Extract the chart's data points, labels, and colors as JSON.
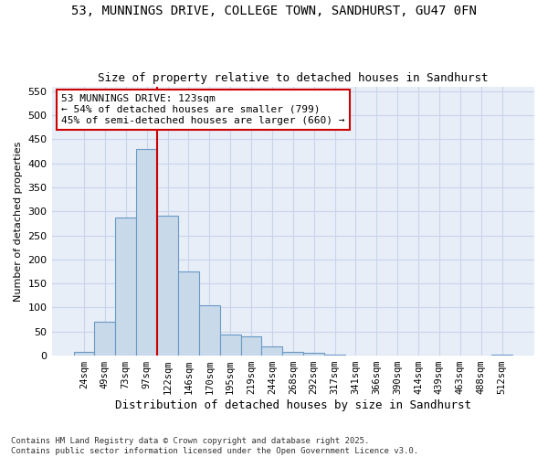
{
  "title1": "53, MUNNINGS DRIVE, COLLEGE TOWN, SANDHURST, GU47 0FN",
  "title2": "Size of property relative to detached houses in Sandhurst",
  "xlabel": "Distribution of detached houses by size in Sandhurst",
  "ylabel": "Number of detached properties",
  "bin_labels": [
    "24sqm",
    "49sqm",
    "73sqm",
    "97sqm",
    "122sqm",
    "146sqm",
    "170sqm",
    "195sqm",
    "219sqm",
    "244sqm",
    "268sqm",
    "292sqm",
    "317sqm",
    "341sqm",
    "366sqm",
    "390sqm",
    "414sqm",
    "439sqm",
    "463sqm",
    "488sqm",
    "512sqm"
  ],
  "bar_values": [
    8,
    70,
    288,
    430,
    292,
    175,
    105,
    44,
    40,
    20,
    8,
    5,
    2,
    0,
    0,
    0,
    0,
    0,
    0,
    0,
    2
  ],
  "bar_color": "#c8d9ea",
  "bar_edge_color": "#6899c4",
  "annotation_text": "53 MUNNINGS DRIVE: 123sqm\n← 54% of detached houses are smaller (799)\n45% of semi-detached houses are larger (660) →",
  "annotation_box_color": "#ffffff",
  "annotation_box_edge": "#cc0000",
  "vline_color": "#cc0000",
  "grid_color": "#c8d4e8",
  "background_color": "#e8eef8",
  "footer_text": "Contains HM Land Registry data © Crown copyright and database right 2025.\nContains public sector information licensed under the Open Government Licence v3.0.",
  "ylim": [
    0,
    560
  ],
  "yticks": [
    0,
    50,
    100,
    150,
    200,
    250,
    300,
    350,
    400,
    450,
    500,
    550
  ]
}
